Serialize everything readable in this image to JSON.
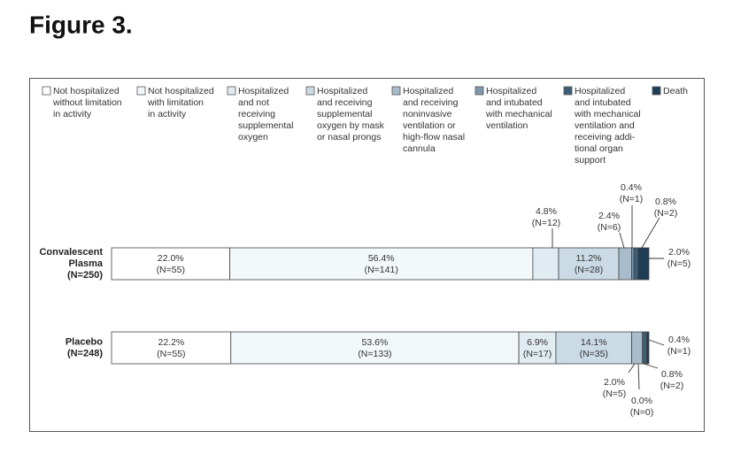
{
  "chart_data": {
    "type": "stacked-barh",
    "title": "Figure 3.",
    "categories": [
      [
        "Convalescent",
        "Plasma",
        "(N=250)"
      ],
      [
        "Placebo",
        "(N=248)"
      ]
    ],
    "xlim": [
      0,
      100
    ],
    "series": [
      {
        "name": [
          "Not hospitalized",
          "without limitation",
          "in activity"
        ],
        "color": "#ffffff",
        "values": [
          22.0,
          22.2
        ],
        "value_labels": [
          "22.0%",
          "22.2%"
        ],
        "count_labels": [
          "(N=55)",
          "(N=55)"
        ]
      },
      {
        "name": [
          "Not hospitalized",
          "with limitation",
          "in activity"
        ],
        "color": "#f2f7fa",
        "values": [
          56.4,
          53.6
        ],
        "value_labels": [
          "56.4%",
          "53.6%"
        ],
        "count_labels": [
          "(N=141)",
          "(N=133)"
        ]
      },
      {
        "name": [
          "Hospitalized",
          "and not",
          "receiving",
          "supplemental",
          "oxygen"
        ],
        "color": "#e1ebf2",
        "values": [
          4.8,
          6.9
        ],
        "value_labels": [
          "4.8%",
          "6.9%"
        ],
        "count_labels": [
          "(N=12)",
          "(N=17)"
        ]
      },
      {
        "name": [
          "Hospitalized",
          "and receiving",
          "supplemental",
          "oxygen by mask",
          "or nasal prongs"
        ],
        "color": "#cbdbe6",
        "values": [
          11.2,
          14.1
        ],
        "value_labels": [
          "11.2%",
          "14.1%"
        ],
        "count_labels": [
          "(N=28)",
          "(N=35)"
        ]
      },
      {
        "name": [
          "Hospitalized",
          "and receiving",
          "noninvasive",
          "ventilation or",
          "high-flow nasal",
          "cannula"
        ],
        "color": "#a8bccb",
        "values": [
          2.4,
          2.0
        ],
        "value_labels": [
          "2.4%",
          "2.0%"
        ],
        "count_labels": [
          "(N=6)",
          "(N=5)"
        ]
      },
      {
        "name": [
          "Hospitalized",
          "and intubated",
          "with mechanical",
          "ventilation"
        ],
        "color": "#7e97ab",
        "values": [
          0.4,
          0.0
        ],
        "value_labels": [
          "0.4%",
          "0.0%"
        ],
        "count_labels": [
          "(N=1)",
          "(N=0)"
        ]
      },
      {
        "name": [
          "Hospitalized",
          "and intubated",
          "with mechanical",
          "ventilation and",
          "receiving addi-",
          "tional organ",
          "support"
        ],
        "color": "#3c5e76",
        "values": [
          0.8,
          0.8
        ],
        "value_labels": [
          "0.8%",
          "0.8%"
        ],
        "count_labels": [
          "(N=2)",
          "(N=2)"
        ]
      },
      {
        "name": [
          "Death"
        ],
        "color": "#1e3c54",
        "values": [
          2.0,
          0.4
        ],
        "value_labels": [
          "2.0%",
          "0.4%"
        ],
        "count_labels": [
          "(N=5)",
          "(N=1)"
        ]
      }
    ]
  }
}
